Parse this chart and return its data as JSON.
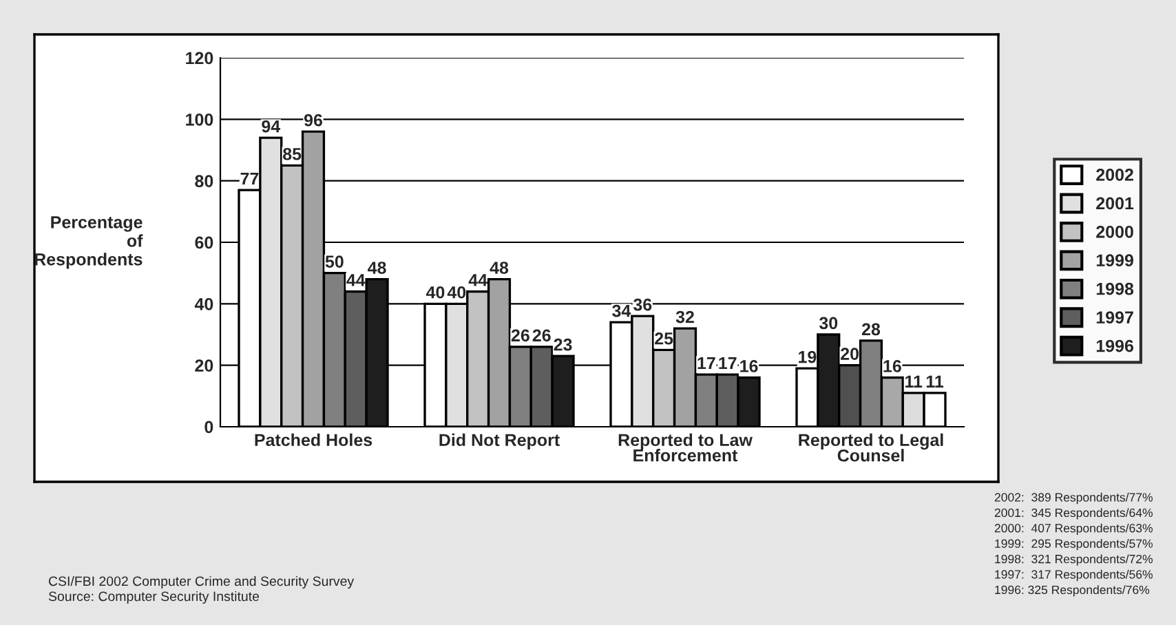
{
  "chart_data": {
    "type": "bar",
    "ylabel": "Percentage\nof\nRespondents",
    "categories": [
      "Patched Holes",
      "Did Not Report",
      "Reported to Law\nEnforcement",
      "Reported to Legal\nCounsel"
    ],
    "series": [
      {
        "name": "2002",
        "color": "#ffffff",
        "values": [
          77,
          40,
          34,
          19
        ],
        "colors": [
          "#ffffff",
          "#ffffff",
          "#ffffff",
          "#ffffff"
        ]
      },
      {
        "name": "2001",
        "color": "#e0e0e0",
        "values": [
          94,
          40,
          36,
          30
        ],
        "colors": [
          "#e0e0e0",
          "#e0e0e0",
          "#e0e0e0",
          "#1e1e1e"
        ]
      },
      {
        "name": "2000",
        "color": "#c2c2c2",
        "values": [
          85,
          44,
          25,
          20
        ],
        "colors": [
          "#c2c2c2",
          "#c2c2c2",
          "#c2c2c2",
          "#505050"
        ]
      },
      {
        "name": "1999",
        "color": "#a2a2a2",
        "values": [
          96,
          48,
          32,
          28
        ],
        "colors": [
          "#a2a2a2",
          "#a2a2a2",
          "#a2a2a2",
          "#808080"
        ]
      },
      {
        "name": "1998",
        "color": "#808080",
        "values": [
          50,
          26,
          17,
          16
        ],
        "colors": [
          "#808080",
          "#808080",
          "#808080",
          "#a8a8a8"
        ]
      },
      {
        "name": "1997",
        "color": "#5e5e5e",
        "values": [
          44,
          26,
          17,
          11
        ],
        "colors": [
          "#5e5e5e",
          "#5e5e5e",
          "#5e5e5e",
          "#dcdcdc"
        ]
      },
      {
        "name": "1996",
        "color": "#1e1e1e",
        "values": [
          48,
          23,
          16,
          11
        ],
        "colors": [
          "#1e1e1e",
          "#1e1e1e",
          "#1e1e1e",
          "#ffffff"
        ]
      }
    ],
    "ylim": [
      0,
      120
    ],
    "yticks": [
      0,
      20,
      40,
      60,
      80,
      100,
      120
    ],
    "grid": "y",
    "legend": "right",
    "data_labels": true,
    "annotations": [
      "2002:  389 Respondents/77%",
      "2001:  345 Respondents/64%",
      "2000:  407 Respondents/63%",
      "1999:  295 Respondents/57%",
      "1998:  321 Respondents/72%",
      "1997:  317 Respondents/56%",
      "1996: 325 Respondents/76%",
      "CSI/FBI 2002 Computer Crime and Security Survey",
      "Source: Computer Security Institute"
    ]
  }
}
